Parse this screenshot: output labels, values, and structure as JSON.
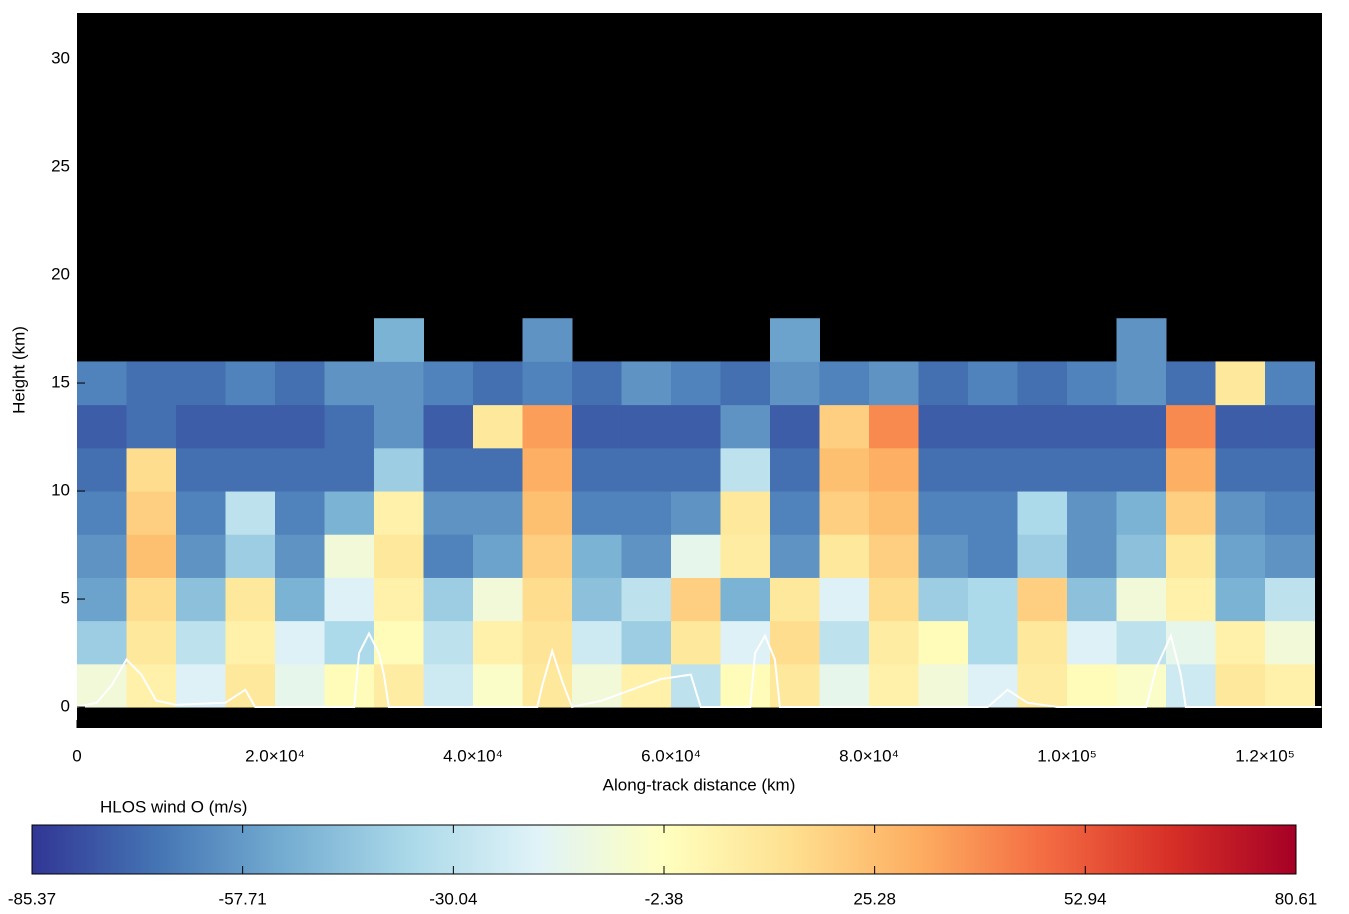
{
  "chart_data": {
    "type": "heatmap",
    "xlabel": "Along-track distance (km)",
    "ylabel": "Height (km)",
    "xlim": [
      0,
      125758
    ],
    "ylim": [
      -0.97,
      32.13
    ],
    "xticks": [
      0,
      {
        "value": 20000,
        "label": "2.0×10⁴"
      },
      {
        "value": 40000,
        "label": "4.0×10⁴"
      },
      {
        "value": 60000,
        "label": "6.0×10⁴"
      },
      {
        "value": 80000,
        "label": "8.0×10⁴"
      },
      {
        "value": 100000,
        "label": "1.0×10⁵"
      },
      {
        "value": 120000,
        "label": "1.2×10⁵"
      }
    ],
    "yticks": [
      0,
      5,
      10,
      15,
      20,
      25,
      30
    ],
    "background": "#000000",
    "x_edges": [
      0,
      5000,
      10000,
      15000,
      20000,
      25000,
      30000,
      35000,
      40000,
      45000,
      50000,
      55000,
      60000,
      65000,
      70000,
      75000,
      80000,
      85000,
      90000,
      95000,
      100000,
      105000,
      110000,
      115000,
      120000,
      125000
    ],
    "y_edges": [
      0,
      2,
      4,
      6,
      8,
      10,
      12,
      14,
      16,
      18
    ],
    "values": [
      [
        -10,
        5,
        -20,
        10,
        -15,
        0,
        8,
        -25,
        -5,
        10,
        -10,
        5,
        -30,
        0,
        10,
        -15,
        5,
        -10,
        -20,
        8,
        0,
        -5,
        -25,
        10,
        5
      ],
      [
        -40,
        10,
        -30,
        5,
        -20,
        -35,
        0,
        -30,
        5,
        12,
        -25,
        -40,
        10,
        -20,
        15,
        -30,
        8,
        0,
        -35,
        10,
        -20,
        -30,
        -15,
        5,
        -10
      ],
      [
        -55,
        15,
        -45,
        10,
        -50,
        -20,
        5,
        -40,
        -10,
        15,
        -45,
        -30,
        20,
        -50,
        10,
        -20,
        15,
        -40,
        -35,
        20,
        -45,
        -10,
        5,
        -50,
        -30
      ],
      [
        -60,
        25,
        -60,
        -40,
        -60,
        -10,
        10,
        -65,
        -55,
        20,
        -50,
        -60,
        -15,
        8,
        -60,
        10,
        20,
        -60,
        -65,
        -40,
        -60,
        -45,
        10,
        -55,
        -60
      ],
      [
        -65,
        20,
        -65,
        -30,
        -65,
        -50,
        5,
        -60,
        -60,
        25,
        -65,
        -65,
        -60,
        10,
        -65,
        20,
        25,
        -65,
        -65,
        -35,
        -60,
        -50,
        20,
        -60,
        -65
      ],
      [
        -70,
        15,
        -70,
        -70,
        -70,
        -70,
        -40,
        -70,
        -70,
        30,
        -70,
        -70,
        -70,
        -30,
        -70,
        25,
        30,
        -70,
        -70,
        -70,
        -70,
        -70,
        30,
        -70,
        -70
      ],
      [
        -75,
        -70,
        -75,
        -75,
        -75,
        -70,
        -60,
        -75,
        10,
        35,
        -75,
        -75,
        -75,
        -60,
        -75,
        20,
        40,
        -75,
        -75,
        -75,
        -75,
        -75,
        40,
        -75,
        -75
      ],
      [
        -65,
        -70,
        -70,
        -65,
        -70,
        -60,
        -60,
        -65,
        -70,
        -65,
        -70,
        -60,
        -65,
        -70,
        -60,
        -65,
        -60,
        -70,
        -65,
        -70,
        -65,
        -60,
        -70,
        10,
        -65
      ],
      [
        null,
        null,
        null,
        null,
        null,
        null,
        -50,
        null,
        null,
        -60,
        null,
        null,
        null,
        null,
        -55,
        null,
        null,
        null,
        null,
        null,
        null,
        -60,
        null,
        null,
        null
      ]
    ],
    "line": {
      "color": "#ffffff",
      "x": [
        0,
        2000,
        3500,
        5000,
        6500,
        8000,
        10000,
        15000,
        17000,
        18000,
        28000,
        28500,
        29500,
        30500,
        31000,
        31500,
        46500,
        47000,
        48000,
        49000,
        50000,
        53000,
        56000,
        59000,
        62000,
        63000,
        68000,
        68500,
        69500,
        70500,
        71000,
        80000,
        92000,
        94000,
        96000,
        99000,
        108000,
        109000,
        110500,
        111500,
        112000,
        125700
      ],
      "values": [
        0,
        0.2,
        1,
        2.2,
        1.5,
        0.3,
        0.1,
        0.2,
        0.8,
        0,
        0,
        2.5,
        3.4,
        2.5,
        1.5,
        0,
        0,
        1,
        2.6,
        1.2,
        0,
        0.3,
        0.8,
        1.3,
        1.5,
        0,
        0,
        2.5,
        3.3,
        2.2,
        0,
        0,
        0,
        0.8,
        0.2,
        0,
        0,
        1.8,
        3.3,
        1.5,
        0,
        0
      ]
    },
    "colorbar": {
      "label": "HLOS wind O (m/s)",
      "lim": [
        -85.37,
        80.61
      ],
      "ticks": [
        -85.37,
        -57.71,
        -30.04,
        -2.38,
        25.28,
        52.94,
        80.61
      ],
      "colors": [
        "#313695",
        "#4575b4",
        "#74add1",
        "#abd9e9",
        "#e0f3f8",
        "#ffffbf",
        "#fee090",
        "#fdae61",
        "#f46d43",
        "#d73027",
        "#a50026"
      ]
    }
  }
}
